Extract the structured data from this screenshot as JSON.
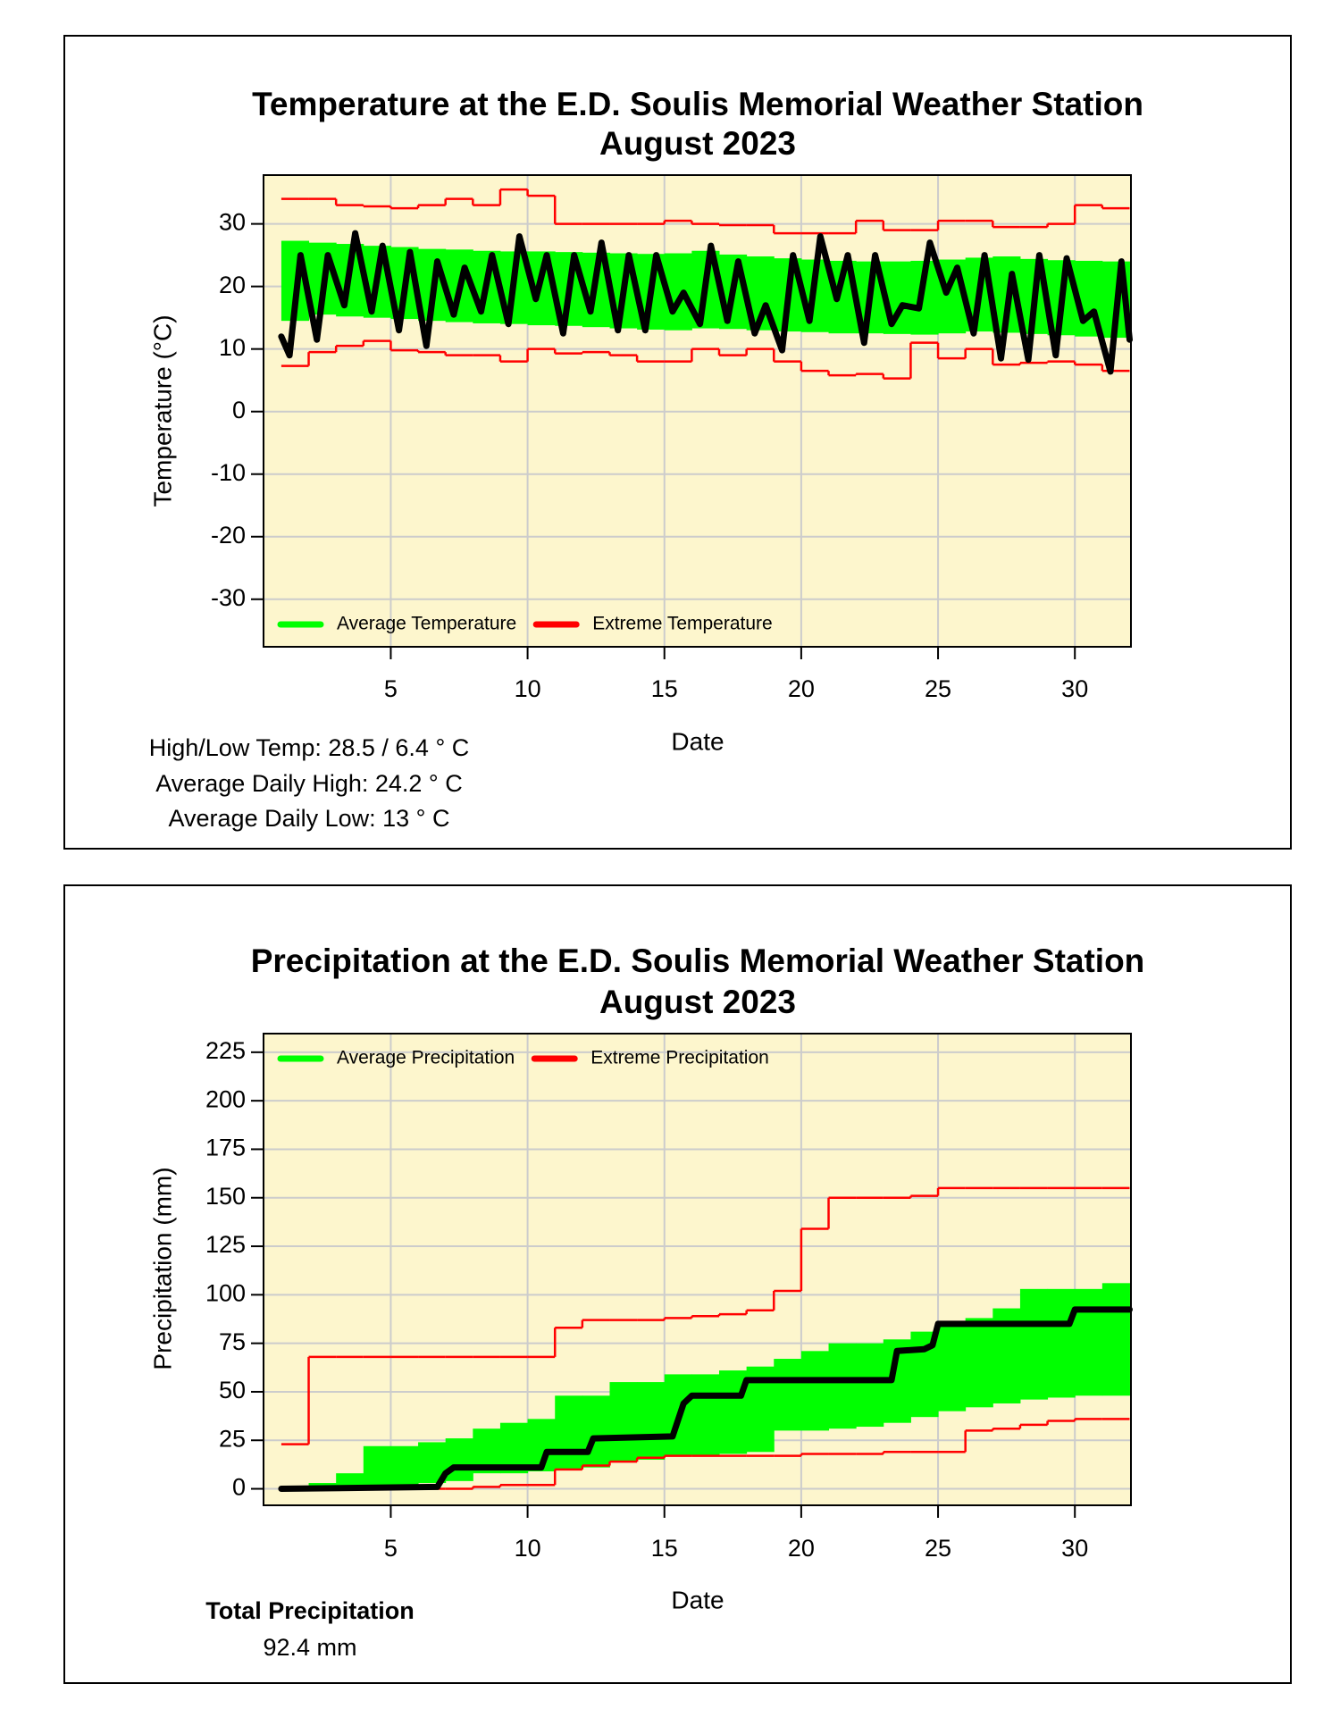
{
  "chart_data": [
    {
      "type": "line",
      "title": "Temperature at the E.D. Soulis Memorial Weather Station",
      "subtitle": "August 2023",
      "xlabel": "Date",
      "ylabel": "Temperature (°C)",
      "xlim": [
        0.35,
        32.05
      ],
      "xticks": [
        5,
        10,
        15,
        20,
        25,
        30
      ],
      "ylim": [
        -37.6,
        37.8
      ],
      "yticks": [
        -30,
        -20,
        -10,
        0,
        10,
        20,
        30
      ],
      "grid": true,
      "legend": "lower left",
      "series": [
        {
          "name": "Average Temperature",
          "color": "#00ff00",
          "kind": "band",
          "x": [
            1,
            2,
            3,
            4,
            5,
            6,
            7,
            8,
            9,
            10,
            11,
            12,
            13,
            14,
            15,
            16,
            17,
            18,
            19,
            20,
            21,
            22,
            23,
            24,
            25,
            26,
            27,
            28,
            29,
            30,
            31
          ],
          "lower": [
            14.5,
            15.5,
            15.2,
            15,
            14.8,
            14.5,
            14.3,
            14.1,
            14,
            13.8,
            13.7,
            13.5,
            13.3,
            13.1,
            13,
            13.3,
            13.2,
            13,
            12.8,
            12.7,
            12.5,
            12.5,
            12.4,
            12.3,
            12.5,
            12.8,
            12.6,
            12.4,
            12.2,
            12,
            11.8
          ],
          "upper": [
            27.3,
            27,
            26.8,
            26.5,
            26.3,
            26,
            25.9,
            25.7,
            25.6,
            25.6,
            25.5,
            25.4,
            25.3,
            25.2,
            25.3,
            25.7,
            25.1,
            24.8,
            24.5,
            24.3,
            24.1,
            24,
            24,
            24.1,
            24.3,
            24.6,
            24.8,
            24.4,
            24.2,
            24.1,
            24
          ]
        },
        {
          "name": "Extreme Temperature",
          "color": "#ff0000",
          "kind": "steps",
          "x": [
            1,
            2,
            3,
            4,
            5,
            6,
            7,
            8,
            9,
            10,
            11,
            12,
            13,
            14,
            15,
            16,
            17,
            18,
            19,
            20,
            21,
            22,
            23,
            24,
            25,
            26,
            27,
            28,
            29,
            30,
            31
          ],
          "lower": [
            7.3,
            9.5,
            10.5,
            11.3,
            9.8,
            9.5,
            9,
            9,
            8,
            10,
            9.3,
            9.5,
            9,
            8,
            8,
            10,
            9,
            10,
            8,
            6.5,
            5.8,
            6,
            5.3,
            11,
            8.5,
            10,
            7.5,
            7.8,
            8,
            7.5,
            6.5
          ],
          "upper": [
            34,
            34,
            33,
            32.8,
            32.5,
            33,
            34,
            33,
            35.5,
            34.5,
            30,
            30,
            30,
            30,
            30.5,
            30,
            29.8,
            29.8,
            28.5,
            28.5,
            28.5,
            30.5,
            29,
            29,
            30.5,
            30.5,
            29.5,
            29.5,
            30,
            33,
            32.5
          ]
        },
        {
          "color": "#000000",
          "kind": "line",
          "x": [
            1,
            1.3,
            1.7,
            2.3,
            2.7,
            3.3,
            3.7,
            4.3,
            4.7,
            5.3,
            5.7,
            6.3,
            6.7,
            7.3,
            7.7,
            8.3,
            8.7,
            9.3,
            9.7,
            10.3,
            10.7,
            11.3,
            11.7,
            12.3,
            12.7,
            13.3,
            13.7,
            14.3,
            14.7,
            15.3,
            15.7,
            16.3,
            16.7,
            17.3,
            17.7,
            18.3,
            18.7,
            19.3,
            19.7,
            20.3,
            20.7,
            21.3,
            21.7,
            22.3,
            22.7,
            23.3,
            23.7,
            24.3,
            24.7,
            25.3,
            25.7,
            26.3,
            26.7,
            27.3,
            27.7,
            28.3,
            28.7,
            29.3,
            29.7,
            30.3,
            30.7,
            31.3,
            31.7,
            32
          ],
          "values": [
            12,
            9,
            25,
            11.5,
            25,
            17,
            28.5,
            16,
            26.5,
            13,
            25.5,
            10.5,
            24,
            15.5,
            23,
            16,
            25,
            14,
            28,
            18,
            25,
            12.5,
            25,
            16,
            27,
            13,
            25,
            13,
            25,
            16,
            19,
            14,
            26.5,
            14.5,
            24,
            12.5,
            17,
            9.8,
            25,
            14.5,
            28,
            18,
            25,
            11,
            25,
            14,
            17,
            16.5,
            27,
            19,
            23,
            12.5,
            25,
            8.5,
            22,
            8.3,
            25,
            9,
            24.5,
            14.5,
            16,
            6.4,
            24,
            11.5
          ]
        }
      ],
      "stats": [
        "High/Low Temp:  28.5 / 6.4 ° C",
        "Average Daily High:  24.2 ° C",
        "Average Daily Low:  13 ° C"
      ]
    },
    {
      "type": "line",
      "title": "Precipitation at the E.D. Soulis Memorial Weather Station",
      "subtitle": "August 2023",
      "xlabel": "Date",
      "ylabel": "Precipitation (mm)",
      "xlim": [
        0.35,
        32.05
      ],
      "xticks": [
        5,
        10,
        15,
        20,
        25,
        30
      ],
      "ylim": [
        -8.5,
        234.6
      ],
      "yticks": [
        0,
        25,
        50,
        75,
        100,
        125,
        150,
        175,
        200,
        225
      ],
      "grid": true,
      "legend": "upper left",
      "series": [
        {
          "name": "Average Precipitation",
          "color": "#00ff00",
          "kind": "band",
          "x": [
            1,
            2,
            3,
            4,
            5,
            6,
            7,
            8,
            9,
            10,
            11,
            12,
            13,
            14,
            15,
            16,
            17,
            18,
            19,
            20,
            21,
            22,
            23,
            24,
            25,
            26,
            27,
            28,
            29,
            30,
            31
          ],
          "lower": [
            0,
            0,
            0,
            1,
            1,
            3,
            4,
            8,
            8,
            9,
            10,
            11,
            14,
            15,
            17,
            17,
            18,
            19,
            30,
            30,
            31,
            32,
            34,
            37,
            40,
            42,
            44,
            46,
            47,
            48,
            48
          ],
          "upper": [
            0,
            3,
            8,
            22,
            22,
            24,
            26,
            31,
            34,
            36,
            48,
            48,
            55,
            55,
            59,
            59,
            61,
            63,
            67,
            71,
            75,
            75,
            77,
            81,
            86,
            88,
            93,
            103,
            103,
            103,
            106
          ]
        },
        {
          "name": "Extreme Precipitation",
          "color": "#ff0000",
          "kind": "steps",
          "x": [
            1,
            2,
            3,
            4,
            5,
            6,
            7,
            8,
            9,
            10,
            11,
            12,
            13,
            14,
            15,
            16,
            17,
            18,
            19,
            20,
            21,
            22,
            23,
            24,
            25,
            26,
            27,
            28,
            29,
            30,
            31
          ],
          "lower": [
            0,
            0,
            0,
            0,
            0,
            0,
            0,
            1,
            2,
            2,
            10,
            12,
            14,
            16,
            17,
            17,
            17,
            17,
            17,
            18,
            18,
            18,
            19,
            19,
            19,
            30,
            31,
            33,
            35,
            36,
            36
          ],
          "upper": [
            23,
            68,
            68,
            68,
            68,
            68,
            68,
            68,
            68,
            68,
            83,
            87,
            87,
            87,
            88,
            89,
            90,
            92,
            102,
            134,
            150,
            150,
            150,
            151,
            155,
            155,
            155,
            155,
            155,
            155,
            155
          ]
        },
        {
          "color": "#000000",
          "kind": "line",
          "x": [
            1,
            6.7,
            7,
            7.3,
            10.5,
            10.7,
            12.2,
            12.4,
            15.3,
            15.7,
            16,
            17.8,
            18,
            23.3,
            23.5,
            24.5,
            24.8,
            25,
            29.8,
            30,
            32
          ],
          "values": [
            0,
            1,
            8,
            11,
            11,
            19,
            19,
            26,
            27,
            44,
            48,
            48,
            56,
            56,
            71,
            72,
            74,
            85,
            85,
            92.4,
            92.4
          ]
        }
      ],
      "notes": {
        "heading": "Total Precipitation",
        "value": "92.4 mm"
      }
    }
  ]
}
